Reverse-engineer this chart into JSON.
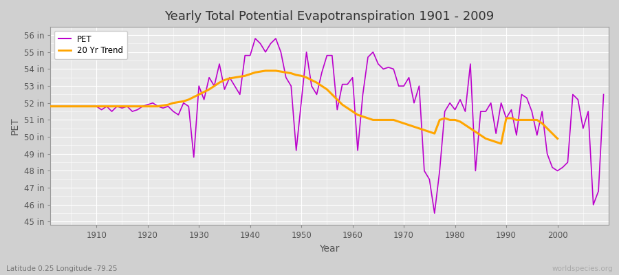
{
  "title": "Yearly Total Potential Evapotranspiration 1901 - 2009",
  "xlabel": "Year",
  "ylabel": "PET",
  "subtitle_left": "Latitude 0.25 Longitude -79.25",
  "subtitle_right": "worldspecies.org",
  "pet_color": "#bb00cc",
  "trend_color": "#ffa500",
  "bg_color": "#d0d0d0",
  "plot_bg_color": "#e8e8e8",
  "ylim": [
    44.8,
    56.5
  ],
  "ytick_labels": [
    "45 in",
    "46 in",
    "47 in",
    "48 in",
    "49 in",
    "50 in",
    "51 in",
    "52 in",
    "53 in",
    "54 in",
    "55 in",
    "56 in"
  ],
  "ytick_values": [
    45,
    46,
    47,
    48,
    49,
    50,
    51,
    52,
    53,
    54,
    55,
    56
  ],
  "years": [
    1901,
    1902,
    1903,
    1904,
    1905,
    1906,
    1907,
    1908,
    1909,
    1910,
    1911,
    1912,
    1913,
    1914,
    1915,
    1916,
    1917,
    1918,
    1919,
    1920,
    1921,
    1922,
    1923,
    1924,
    1925,
    1926,
    1927,
    1928,
    1929,
    1930,
    1931,
    1932,
    1933,
    1934,
    1935,
    1936,
    1937,
    1938,
    1939,
    1940,
    1941,
    1942,
    1943,
    1944,
    1945,
    1946,
    1947,
    1948,
    1949,
    1950,
    1951,
    1952,
    1953,
    1954,
    1955,
    1956,
    1957,
    1958,
    1959,
    1960,
    1961,
    1962,
    1963,
    1964,
    1965,
    1966,
    1967,
    1968,
    1969,
    1970,
    1971,
    1972,
    1973,
    1974,
    1975,
    1976,
    1977,
    1978,
    1979,
    1980,
    1981,
    1982,
    1983,
    1984,
    1985,
    1986,
    1987,
    1988,
    1989,
    1990,
    1991,
    1992,
    1993,
    1994,
    1995,
    1996,
    1997,
    1998,
    1999,
    2000,
    2001,
    2002,
    2003,
    2004,
    2005,
    2006,
    2007,
    2008,
    2009
  ],
  "pet_values": [
    51.8,
    51.8,
    51.8,
    51.8,
    51.8,
    51.8,
    51.8,
    51.8,
    51.8,
    51.8,
    51.6,
    51.8,
    51.5,
    51.8,
    51.7,
    51.8,
    51.5,
    51.6,
    51.8,
    51.9,
    52.0,
    51.8,
    51.7,
    51.8,
    51.5,
    51.3,
    52.0,
    51.8,
    48.8,
    53.0,
    52.2,
    53.5,
    53.0,
    54.3,
    52.8,
    53.5,
    53.0,
    52.5,
    54.8,
    54.8,
    55.8,
    55.5,
    55.0,
    55.5,
    55.8,
    55.0,
    53.5,
    53.0,
    49.2,
    52.1,
    55.0,
    53.0,
    52.5,
    53.8,
    54.8,
    54.8,
    51.6,
    53.1,
    53.1,
    53.5,
    49.2,
    52.5,
    54.7,
    55.0,
    54.3,
    54.0,
    54.1,
    54.0,
    53.0,
    53.0,
    53.5,
    52.0,
    53.0,
    48.0,
    47.5,
    45.5,
    48.0,
    51.5,
    52.0,
    51.6,
    52.2,
    51.5,
    54.3,
    48.0,
    51.5,
    51.5,
    52.0,
    50.2,
    52.0,
    51.1,
    51.6,
    50.1,
    52.5,
    52.3,
    51.5,
    50.1,
    51.5,
    49.0,
    48.2,
    48.0,
    48.2,
    48.5,
    52.5,
    52.2,
    50.5,
    51.5,
    46.0,
    46.8,
    52.5
  ],
  "trend_values": [
    51.8,
    51.8,
    51.8,
    51.8,
    51.8,
    51.8,
    51.8,
    51.8,
    51.8,
    51.8,
    51.8,
    51.8,
    51.8,
    51.8,
    51.8,
    51.8,
    51.8,
    51.8,
    51.8,
    51.8,
    51.8,
    51.8,
    51.85,
    51.9,
    52.0,
    52.05,
    52.1,
    52.2,
    52.35,
    52.5,
    52.65,
    52.8,
    53.0,
    53.2,
    53.35,
    53.45,
    53.5,
    53.55,
    53.6,
    53.7,
    53.8,
    53.85,
    53.9,
    53.9,
    53.9,
    53.85,
    53.8,
    53.75,
    53.65,
    53.6,
    53.5,
    53.35,
    53.2,
    53.0,
    52.8,
    52.5,
    52.2,
    51.9,
    51.7,
    51.5,
    51.3,
    51.2,
    51.1,
    51.0,
    51.0,
    51.0,
    51.0,
    51.0,
    50.9,
    50.8,
    50.7,
    50.6,
    50.5,
    50.4,
    50.3,
    50.2,
    51.0,
    51.1,
    51.0,
    51.0,
    50.9,
    50.7,
    50.5,
    50.3,
    50.1,
    49.9,
    49.8,
    49.7,
    49.6,
    51.1,
    51.1,
    51.0,
    51.0,
    51.0,
    51.0,
    51.0,
    50.8,
    50.5,
    50.2,
    49.9,
    null,
    null,
    null,
    null,
    null,
    null,
    null,
    null
  ]
}
